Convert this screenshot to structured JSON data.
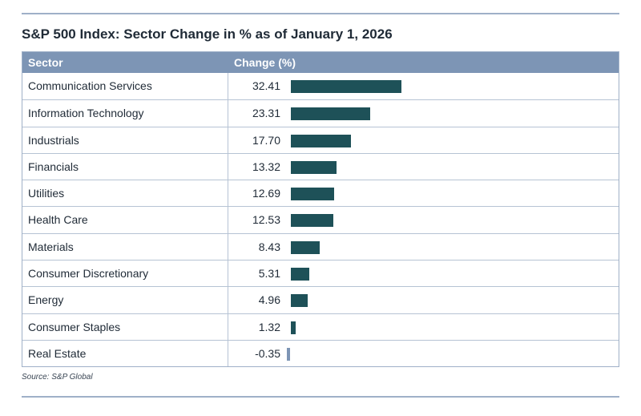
{
  "title": "S&P 500 Index: Sector Change in % as of January 1, 2026",
  "source": "Source: S&P Global",
  "columns": {
    "sector": "Sector",
    "change": "Change (%)"
  },
  "colors": {
    "positive_bar": "#1e5158",
    "negative_bar": "#7d95b5",
    "header_bg": "#7d95b5",
    "rule": "#9fb0c8"
  },
  "chart_data": {
    "type": "bar",
    "orientation": "horizontal",
    "title": "S&P 500 Index: Sector Change in % as of January 1, 2026",
    "categories": [
      "Communication Services",
      "Information Technology",
      "Industrials",
      "Financials",
      "Utilities",
      "Health Care",
      "Materials",
      "Consumer Discretionary",
      "Energy",
      "Consumer Staples",
      "Real Estate"
    ],
    "value_labels": [
      "32.41",
      "23.31",
      "17.70",
      "13.32",
      "12.69",
      "12.53",
      "8.43",
      "5.31",
      "4.96",
      "1.32",
      "-0.35"
    ],
    "values": [
      32.41,
      23.31,
      17.7,
      13.32,
      12.69,
      12.53,
      8.43,
      5.31,
      4.96,
      1.32,
      -0.35
    ],
    "grid": false,
    "legend": "none"
  }
}
